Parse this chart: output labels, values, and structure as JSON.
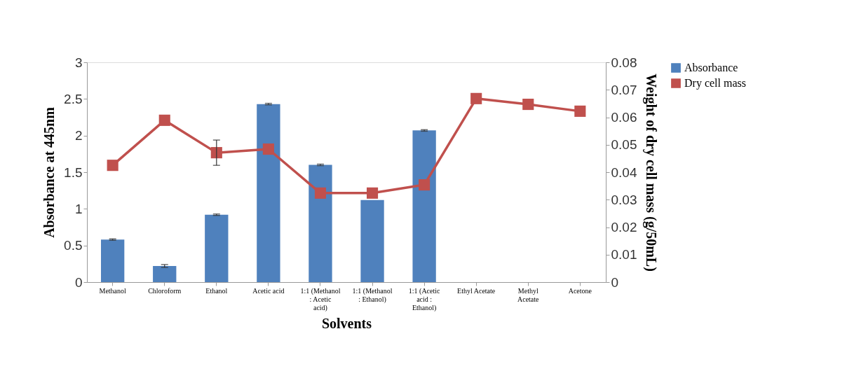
{
  "chart_data": {
    "type": "bar",
    "xlabel": "Solvents",
    "ylabel": "Absorbance at 445nm",
    "y2label": "Weight of dry cell mass (g/50mL)",
    "categories": [
      "Methanol",
      "Chloroform",
      "Ethanol",
      "Acetic acid",
      "1:1 (Methanol : Acetic acid)",
      "1:1 (Methanol : Ethanol)",
      "1:1 (Acetic acid : Ethanol)",
      "Ethyl Acetate",
      "Methyl Acetate",
      "Acetone"
    ],
    "series": [
      {
        "name": "Absorbance",
        "color": "#4f81bd",
        "values": [
          0.58,
          0.22,
          0.92,
          2.43,
          1.6,
          1.12,
          2.07,
          null,
          null,
          null
        ],
        "errors": [
          0.01,
          0.02,
          0.01,
          0.01,
          0.01,
          null,
          0.01,
          null,
          null,
          null
        ]
      },
      {
        "name": "Dry cell mass",
        "type": "line",
        "axis": "y2",
        "color": "#c0504d",
        "marker": "square",
        "values": [
          0.0425,
          0.0589,
          0.0471,
          0.0484,
          0.0324,
          0.0324,
          0.0354,
          0.0668,
          0.0647,
          0.0622
        ],
        "errors": [
          null,
          null,
          0.0046,
          null,
          null,
          null,
          null,
          null,
          null,
          null
        ]
      }
    ],
    "ylim": [
      0,
      3
    ],
    "yticks": [
      0,
      0.5,
      1,
      1.5,
      2,
      2.5,
      3
    ],
    "y2lim": [
      0,
      0.08
    ],
    "y2ticks": [
      0,
      0.01,
      0.02,
      0.03,
      0.04,
      0.05,
      0.06,
      0.07,
      0.08
    ],
    "grid": false,
    "legend": "right"
  }
}
